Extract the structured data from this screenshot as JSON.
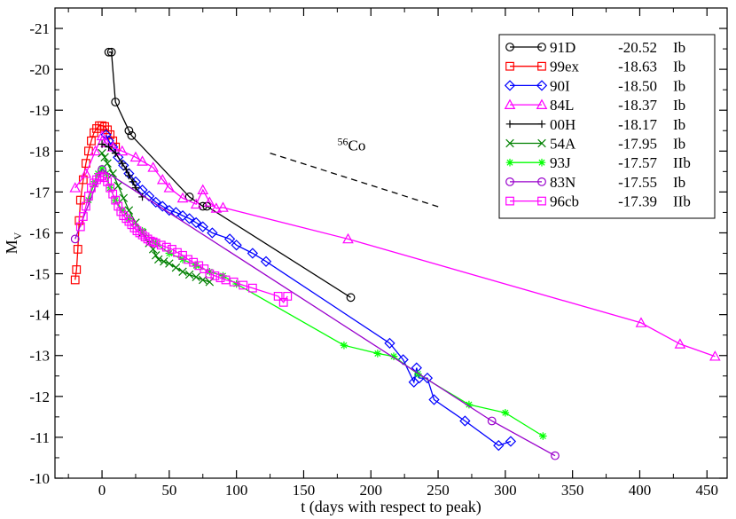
{
  "chart_data": {
    "type": "line",
    "xlabel": "t (days with respect to peak)",
    "ylabel_main": "M",
    "ylabel_sub": "V",
    "xlim": [
      -35,
      465
    ],
    "ylim": [
      -10,
      -21.5
    ],
    "y_inverted": true,
    "x_ticks": [
      0,
      50,
      100,
      150,
      200,
      250,
      300,
      350,
      400,
      450
    ],
    "x_tick_labels": [
      "0",
      "50",
      "100",
      "150",
      "200",
      "250",
      "300",
      "350",
      "400",
      "450"
    ],
    "y_ticks": [
      -10,
      -11,
      -12,
      -13,
      -14,
      -15,
      -16,
      -17,
      -18,
      -19,
      -20,
      -21
    ],
    "y_tick_labels": [
      "-10",
      "-11",
      "-12",
      "-13",
      "-14",
      "-15",
      "-16",
      "-17",
      "-18",
      "-19",
      "-20",
      "-21"
    ],
    "legend_position": "top-right",
    "annotation": {
      "label_sup": "56",
      "label": "Co",
      "line": {
        "x": [
          125,
          252
        ],
        "y": [
          -17.95,
          -16.62
        ]
      }
    },
    "series": [
      {
        "name": "91D",
        "mag": "-20.52",
        "type_label": "Ib",
        "color": "#000000",
        "marker": "circle",
        "x": [
          5,
          7,
          10,
          20,
          22,
          65,
          75,
          78,
          185
        ],
        "y": [
          -20.42,
          -20.42,
          -19.2,
          -18.5,
          -18.38,
          -16.88,
          -16.65,
          -16.65,
          -14.42
        ]
      },
      {
        "name": "99ex",
        "mag": "-18.63",
        "type_label": "Ib",
        "color": "#ff0000",
        "marker": "square",
        "x": [
          -20,
          -19,
          -18,
          -17,
          -16,
          -14,
          -12,
          -10,
          -8,
          -6,
          -4,
          -2,
          0,
          2,
          4,
          6,
          8,
          10
        ],
        "y": [
          -14.85,
          -15.1,
          -15.6,
          -16.3,
          -16.8,
          -17.3,
          -17.7,
          -18.0,
          -18.25,
          -18.45,
          -18.55,
          -18.62,
          -18.62,
          -18.6,
          -18.52,
          -18.4,
          -18.25,
          -18.1
        ]
      },
      {
        "name": "90I",
        "mag": "-18.50",
        "type_label": "Ib",
        "color": "#0000ff",
        "marker": "diamond",
        "x": [
          3,
          5,
          8,
          12,
          16,
          20,
          25,
          30,
          35,
          40,
          45,
          50,
          55,
          60,
          65,
          70,
          75,
          82,
          95,
          100,
          112,
          122,
          214,
          224,
          232,
          234,
          236,
          242,
          247,
          270,
          295,
          304
        ],
        "y": [
          -18.4,
          -18.25,
          -18.1,
          -17.85,
          -17.65,
          -17.45,
          -17.25,
          -17.05,
          -16.9,
          -16.75,
          -16.65,
          -16.55,
          -16.5,
          -16.42,
          -16.35,
          -16.25,
          -16.15,
          -16.0,
          -15.85,
          -15.7,
          -15.5,
          -15.3,
          -13.3,
          -12.9,
          -12.35,
          -12.7,
          -12.45,
          -12.45,
          -11.92,
          -11.4,
          -10.8,
          -10.9
        ]
      },
      {
        "name": "84L",
        "mag": "-18.37",
        "type_label": "Ib",
        "color": "#ff00ff",
        "marker": "triangle",
        "x": [
          -20,
          -12,
          -5,
          0,
          3,
          8,
          15,
          25,
          30,
          38,
          45,
          50,
          60,
          70,
          75,
          80,
          85,
          90,
          183,
          401,
          430,
          456
        ],
        "y": [
          -17.1,
          -17.45,
          -18.0,
          -18.37,
          -18.2,
          -18.1,
          -18.0,
          -17.85,
          -17.75,
          -17.6,
          -17.3,
          -17.1,
          -16.85,
          -16.7,
          -17.05,
          -16.75,
          -16.6,
          -16.62,
          -15.85,
          -13.8,
          -13.28,
          -12.98
        ]
      },
      {
        "name": "00H",
        "mag": "-18.17",
        "type_label": "Ib",
        "color": "#000000",
        "marker": "plus",
        "x": [
          0,
          5,
          10,
          15,
          18,
          20,
          23,
          25,
          30
        ],
        "y": [
          -18.17,
          -18.1,
          -17.95,
          -17.7,
          -17.55,
          -17.4,
          -17.25,
          -17.1,
          -16.88
        ]
      },
      {
        "name": "54A",
        "mag": "-17.95",
        "type_label": "Ib",
        "color": "#008000",
        "marker": "x",
        "x": [
          0,
          2,
          4,
          8,
          12,
          16,
          20,
          25,
          30,
          35,
          38,
          40,
          42,
          46,
          50,
          55,
          60,
          65,
          70,
          75,
          80
        ],
        "y": [
          -17.95,
          -17.85,
          -17.7,
          -17.45,
          -17.15,
          -16.85,
          -16.55,
          -16.25,
          -16.0,
          -15.75,
          -15.6,
          -15.45,
          -15.35,
          -15.3,
          -15.25,
          -15.15,
          -15.05,
          -14.98,
          -14.92,
          -14.85,
          -14.8
        ]
      },
      {
        "name": "93J",
        "mag": "-17.57",
        "type_label": "IIb",
        "color": "#00ff00",
        "marker": "asterisk",
        "x": [
          -10,
          -6,
          -3,
          0,
          3,
          6,
          10,
          15,
          20,
          30,
          40,
          50,
          60,
          70,
          80,
          90,
          100,
          180,
          205,
          217,
          235,
          273,
          300,
          328
        ],
        "y": [
          -16.8,
          -17.2,
          -17.45,
          -17.57,
          -17.45,
          -17.1,
          -16.8,
          -16.55,
          -16.35,
          -16.05,
          -15.75,
          -15.5,
          -15.35,
          -15.2,
          -15.05,
          -14.95,
          -14.75,
          -13.25,
          -13.05,
          -12.98,
          -12.55,
          -11.8,
          -11.6,
          -11.03
        ]
      },
      {
        "name": "83N",
        "mag": "-17.55",
        "type_label": "Ib",
        "color": "#9900cc",
        "marker": "circle",
        "x": [
          -20,
          0,
          290,
          337
        ],
        "y": [
          -15.85,
          -17.55,
          -11.4,
          -10.55
        ]
      },
      {
        "name": "96cb",
        "mag": "-17.39",
        "type_label": "IIb",
        "color": "#ff00ff",
        "marker": "square",
        "x": [
          -16,
          -14,
          -12,
          -10,
          -8,
          -6,
          -4,
          -2,
          0,
          2,
          4,
          6,
          8,
          10,
          12,
          14,
          16,
          18,
          20,
          22,
          24,
          26,
          28,
          30,
          32,
          34,
          36,
          38,
          40,
          44,
          48,
          52,
          56,
          60,
          64,
          68,
          72,
          76,
          80,
          84,
          88,
          92,
          98,
          105,
          112,
          131,
          135,
          138
        ],
        "y": [
          -16.15,
          -16.4,
          -16.65,
          -16.9,
          -17.1,
          -17.22,
          -17.3,
          -17.36,
          -17.39,
          -17.35,
          -17.25,
          -17.1,
          -16.95,
          -16.8,
          -16.65,
          -16.52,
          -16.42,
          -16.35,
          -16.28,
          -16.2,
          -16.12,
          -16.05,
          -16.0,
          -15.95,
          -15.9,
          -15.85,
          -15.8,
          -15.78,
          -15.75,
          -15.7,
          -15.65,
          -15.6,
          -15.52,
          -15.45,
          -15.35,
          -15.28,
          -15.2,
          -15.12,
          -15.0,
          -14.95,
          -14.9,
          -14.85,
          -14.8,
          -14.72,
          -14.65,
          -14.45,
          -14.3,
          -14.45
        ]
      }
    ]
  }
}
